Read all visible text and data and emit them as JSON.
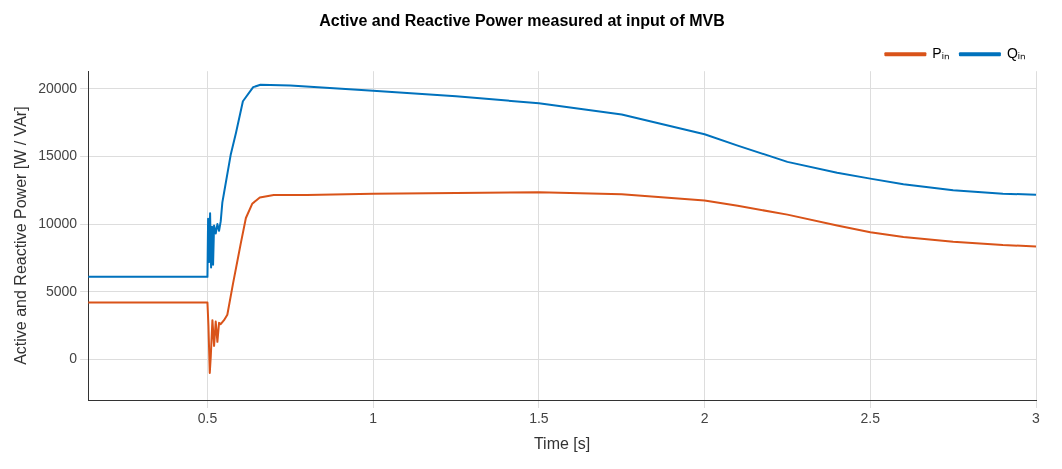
{
  "chart_data": {
    "type": "line",
    "title": "Active and Reactive Power measured at input of MVB",
    "xlabel": "Time [s]",
    "ylabel": "Active and Reactive Power [W / VAr]",
    "xlim": [
      0.14,
      3
    ],
    "xticks": [
      0.5,
      1,
      1.5,
      2,
      2.5,
      3
    ],
    "ylim": [
      -3000,
      21300
    ],
    "yticks": [
      0,
      5000,
      10000,
      15000,
      20000
    ],
    "grid": true,
    "legend": "top right",
    "marker": "none",
    "line_style": "solid",
    "series": [
      {
        "name": "Pᵢₙ",
        "color": "#d95319",
        "x": [
          0.14,
          0.5,
          0.503,
          0.507,
          0.51,
          0.515,
          0.52,
          0.525,
          0.53,
          0.535,
          0.54,
          0.55,
          0.56,
          0.577,
          0.6,
          0.616,
          0.635,
          0.658,
          0.7,
          0.8,
          1,
          1.25,
          1.5,
          1.75,
          2,
          2.1,
          2.25,
          2.4,
          2.5,
          2.6,
          2.75,
          2.9,
          3
        ],
        "values": [
          4200,
          4200,
          2500,
          -1000,
          200,
          2900,
          1000,
          2800,
          1300,
          2700,
          2600,
          2900,
          3300,
          5580,
          8500,
          10450,
          11500,
          11970,
          12150,
          12150,
          12250,
          12300,
          12350,
          12200,
          11750,
          11350,
          10700,
          9900,
          9400,
          9050,
          8700,
          8450,
          8350
        ]
      },
      {
        "name": "Qᵢₙ",
        "color": "#0072bd",
        "x": [
          0.14,
          0.5,
          0.502,
          0.505,
          0.508,
          0.511,
          0.514,
          0.517,
          0.52,
          0.525,
          0.53,
          0.535,
          0.54,
          0.545,
          0.55,
          0.57,
          0.586,
          0.607,
          0.638,
          0.66,
          0.75,
          1,
          1.25,
          1.5,
          1.75,
          2,
          2.1,
          2.25,
          2.4,
          2.5,
          2.6,
          2.75,
          2.9,
          3
        ],
        "values": [
          6100,
          6100,
          10400,
          7200,
          10800,
          6800,
          9800,
          7000,
          9900,
          9300,
          10000,
          9500,
          10200,
          11600,
          12300,
          15100,
          16730,
          19080,
          20120,
          20300,
          20250,
          19850,
          19450,
          18930,
          18100,
          16640,
          15800,
          14600,
          13800,
          13360,
          12950,
          12500,
          12250,
          12170
        ]
      }
    ]
  }
}
